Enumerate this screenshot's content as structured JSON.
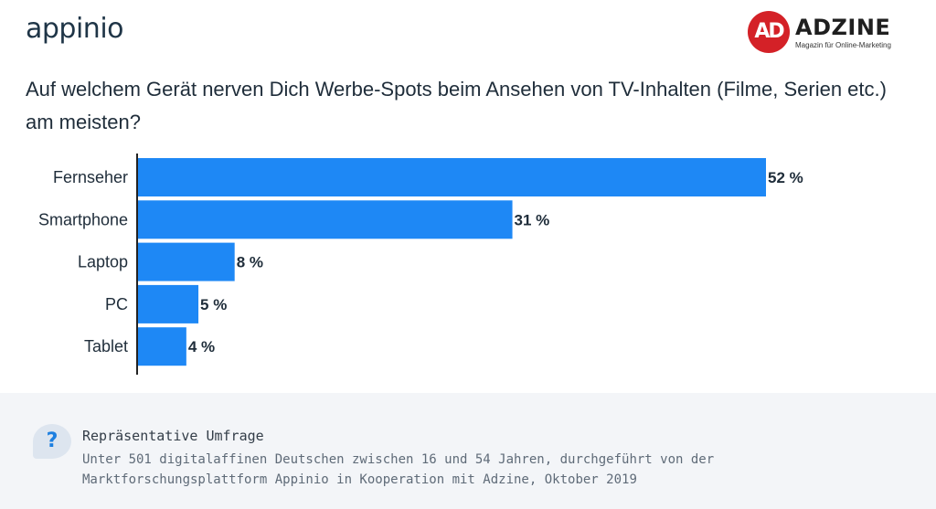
{
  "brand": {
    "name": "appinio"
  },
  "publisher": {
    "mark": "AD",
    "name": "ADZINE",
    "tagline": "Magazin für Online-Marketing",
    "accent_color": "#d42127"
  },
  "question": "Auf welchem Gerät nerven Dich Werbe-Spots beim Ansehen von TV-Inhalten (Filme, Serien etc.) am meisten?",
  "chart_data": {
    "type": "bar",
    "orientation": "horizontal",
    "title": "",
    "xlabel": "",
    "ylabel": "",
    "categories": [
      "Fernseher",
      "Smartphone",
      "Laptop",
      "PC",
      "Tablet"
    ],
    "values": [
      52,
      31,
      8,
      5,
      4
    ],
    "value_labels": [
      "52 %",
      "31 %",
      "8 %",
      "5 %",
      "4 %"
    ],
    "unit": "%",
    "xlim": [
      0,
      52
    ],
    "grid": false,
    "bar_color": "#1e88f5"
  },
  "footer": {
    "icon": "question-mark-icon",
    "heading": "Repräsentative Umfrage",
    "text_line1": "Unter 501 digitalaffinen Deutschen zwischen 16 und 54 Jahren, durchgeführt von der",
    "text_line2": "Marktforschungsplattform Appinio in Kooperation mit Adzine, Oktober 2019"
  }
}
